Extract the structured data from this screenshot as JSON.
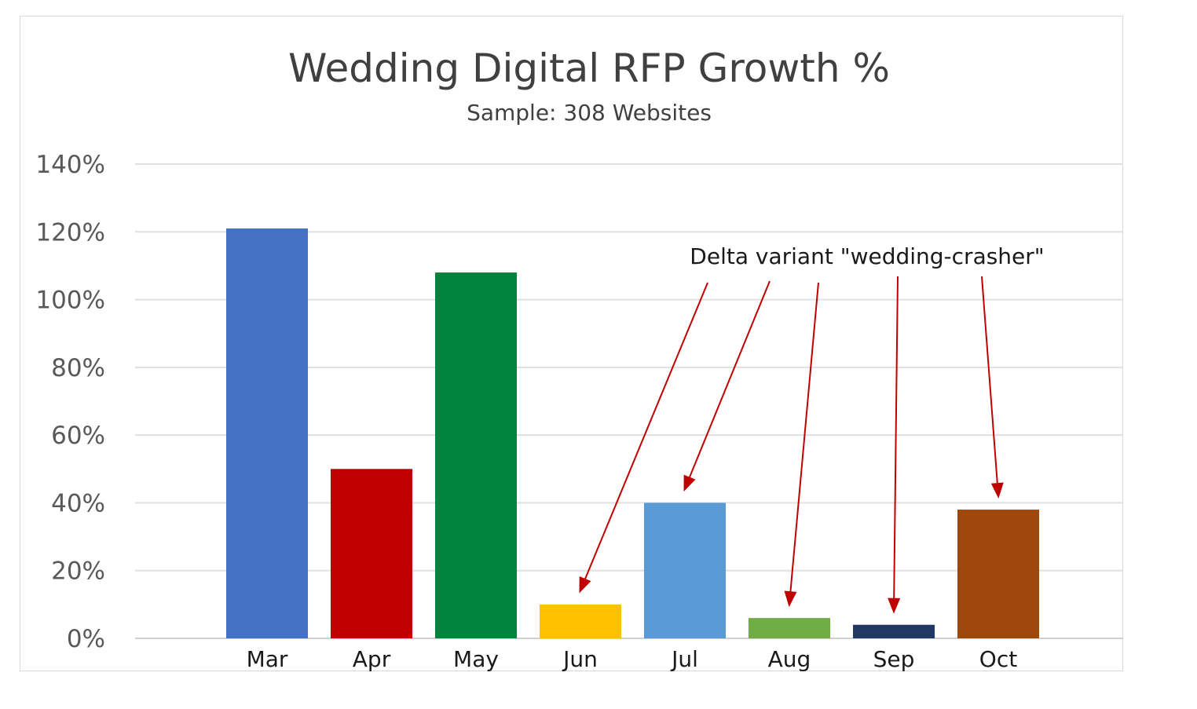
{
  "chart_data": {
    "type": "bar",
    "title": "Wedding Digital RFP Growth %",
    "subtitle": "Sample: 308 Websites",
    "categories": [
      "Mar",
      "Apr",
      "May",
      "Jun",
      "Jul",
      "Aug",
      "Sep",
      "Oct"
    ],
    "values": [
      121,
      50,
      108,
      10,
      40,
      6,
      4,
      38
    ],
    "unit": "%",
    "colors": [
      "#4472C4",
      "#C00000",
      "#00843D",
      "#FFC000",
      "#5B9BD5",
      "#70AD47",
      "#203864",
      "#9E480E"
    ],
    "ylim": [
      0,
      140
    ],
    "yticks": [
      0,
      20,
      40,
      60,
      80,
      100,
      120,
      140
    ],
    "ytick_labels": [
      "0%",
      "20%",
      "40%",
      "60%",
      "80%",
      "100%",
      "120%",
      "140%"
    ],
    "grid": true,
    "annotation": {
      "text": "Delta variant \"wedding-crasher\"",
      "targets": [
        "Jun",
        "Jul",
        "Aug",
        "Sep",
        "Oct"
      ],
      "arrow_color": "#C00000"
    }
  }
}
